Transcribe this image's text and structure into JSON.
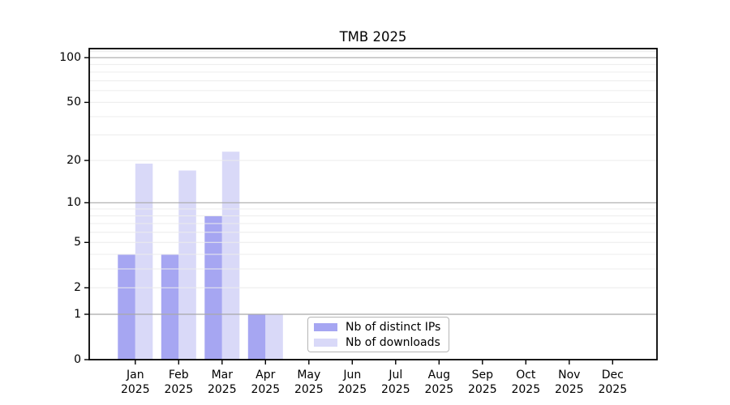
{
  "title": "TMB 2025",
  "colors": {
    "ips": "#a6a6f2",
    "downloads": "#d9d9f8",
    "grid_major": "#a9a9a9",
    "grid_minor": "#ececec",
    "axis": "#000000",
    "text": "#000000",
    "legend_border": "#b5b5b5",
    "background": "#ffffff"
  },
  "legend": {
    "items": [
      {
        "key": "ips",
        "label": "Nb of distinct IPs"
      },
      {
        "key": "downloads",
        "label": "Nb of downloads"
      }
    ]
  },
  "chart_data": {
    "type": "bar",
    "title": "TMB 2025",
    "categories": [
      "Jan 2025",
      "Feb 2025",
      "Mar 2025",
      "Apr 2025",
      "May 2025",
      "Jun 2025",
      "Jul 2025",
      "Aug 2025",
      "Sep 2025",
      "Oct 2025",
      "Nov 2025",
      "Dec 2025"
    ],
    "series": [
      {
        "name": "Nb of distinct IPs",
        "color_key": "ips",
        "values": [
          4,
          4,
          8,
          1,
          0,
          0,
          0,
          0,
          0,
          0,
          0,
          0
        ]
      },
      {
        "name": "Nb of downloads",
        "color_key": "downloads",
        "values": [
          19,
          17,
          23,
          1,
          0,
          0,
          0,
          0,
          0,
          0,
          0,
          0
        ]
      }
    ],
    "y_scale": "log10(1+y)",
    "y_ticks": [
      0,
      1,
      2,
      5,
      10,
      20,
      50,
      100
    ],
    "grid_major_at": [
      1,
      10,
      100
    ],
    "grid_minor_at": [
      2,
      3,
      4,
      5,
      6,
      7,
      8,
      9,
      20,
      30,
      40,
      50,
      60,
      70,
      80,
      90,
      110
    ],
    "ylim": [
      0,
      115
    ],
    "grid": true,
    "legend_position": "lower center"
  }
}
